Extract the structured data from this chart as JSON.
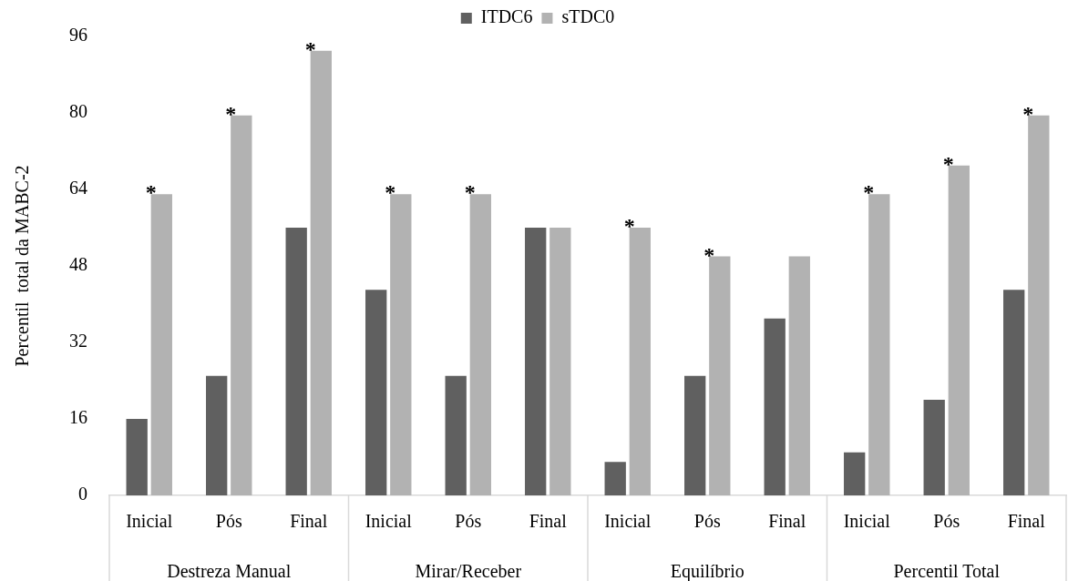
{
  "chart_data": {
    "type": "bar",
    "categories": [
      "Inicial",
      "Pós",
      "Final",
      "Inicial",
      "Pós",
      "Final",
      "Inicial",
      "Pós",
      "Final",
      "Inicial",
      "Pós",
      "Final"
    ],
    "series": [
      {
        "name": "ITDC6",
        "color": "#606060",
        "values": [
          16,
          25,
          56,
          43,
          25,
          56,
          7,
          25,
          37,
          9,
          20,
          43
        ]
      },
      {
        "name": "sTDC0",
        "color": "#b2b2b2",
        "values": [
          63,
          79.5,
          93,
          63,
          63,
          56,
          56,
          50,
          50,
          63,
          69,
          79.5
        ],
        "value_labels": [
          "*",
          "*",
          "*",
          "*",
          "*",
          null,
          "*",
          "*",
          null,
          "*",
          "*",
          "*"
        ]
      }
    ],
    "ylabel": "Percentil  total da MABC-2",
    "ylim": [
      0,
      96
    ],
    "yticks": [
      0,
      16,
      32,
      48,
      64,
      80,
      96
    ],
    "annotations": [
      "Destreza Manual",
      "Mirar/Receber",
      "Equilíbrio",
      "Percentil Total"
    ],
    "grid": false,
    "legend": "top"
  }
}
